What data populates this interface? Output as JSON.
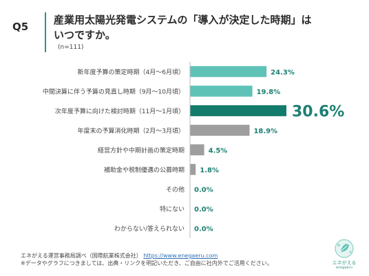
{
  "header": {
    "question": "Q5",
    "title_line1": "産業用太陽光発電システムの「導入が決定した時期」は",
    "title_line2": "いつですか。",
    "sample": "(n=111)"
  },
  "chart_data": {
    "type": "bar",
    "orientation": "horizontal",
    "categories": [
      "新年度予算の策定時期（4月〜6月頃）",
      "中間決算に伴う予算の見直し時期（9月〜10月頃）",
      "次年度予算に向けた検討時期（11月〜1月頃）",
      "年度末の予算消化時期（2月〜3月頃）",
      "経営方針や中期計画の策定時期",
      "補助金や税制優遇の公募時期",
      "その他",
      "特にない",
      "わからない/答えられない"
    ],
    "values": [
      24.3,
      19.8,
      30.6,
      18.9,
      4.5,
      1.8,
      0.0,
      0.0,
      0.0
    ],
    "value_labels": [
      "24.3%",
      "19.8%",
      "30.6%",
      "18.9%",
      "4.5%",
      "1.8%",
      "0.0%",
      "0.0%",
      "0.0%"
    ],
    "colors": [
      "#5fc2b7",
      "#5fc2b7",
      "#137b6b",
      "#9e9e9e",
      "#9e9e9e",
      "#9e9e9e",
      "#9e9e9e",
      "#9e9e9e",
      "#9e9e9e"
    ],
    "label_colors": [
      "#1d7f72",
      "#1d7f72",
      "#1d7f72",
      "#1d7f72",
      "#1d7f72",
      "#1d7f72",
      "#1d7f72",
      "#1d7f72",
      "#1d7f72"
    ],
    "highlight_index": 2,
    "xlim": [
      0,
      30.6
    ],
    "grid": false,
    "legend": false
  },
  "footer": {
    "source": "エネがえる運営事務局調べ（国際航業株式会社）",
    "url": "https://www.enegaeru.com",
    "note": "※データやグラフにつきましては、出典・リンクを明記いただき、ご自由に社内外でご活用ください。"
  },
  "logo": {
    "name": "エネがえる",
    "sub": "enegaeru"
  },
  "accent_color": "#2e8f84"
}
